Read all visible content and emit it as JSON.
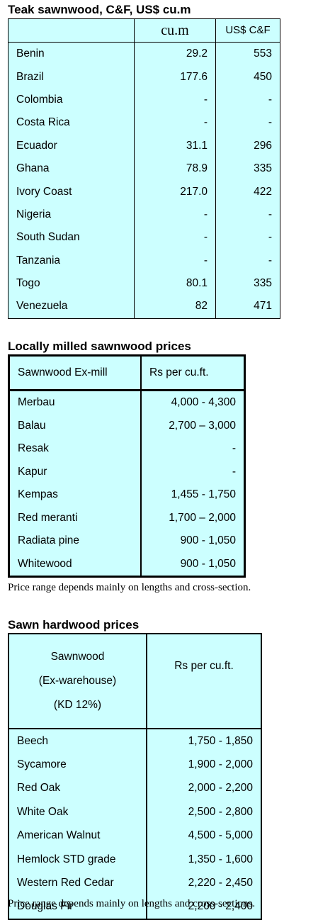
{
  "teak": {
    "title": "Teak sawnwood, C&F, US$ cu.m",
    "headers": [
      "",
      "cu.m",
      "US$ C&F"
    ],
    "rows": [
      [
        "Benin",
        "29.2",
        "553"
      ],
      [
        "Brazil",
        "177.6",
        "450"
      ],
      [
        "Colombia",
        "-",
        "-"
      ],
      [
        "Costa Rica",
        "-",
        "-"
      ],
      [
        "Ecuador",
        "31.1",
        "296"
      ],
      [
        "Ghana",
        "78.9",
        "335"
      ],
      [
        "Ivory Coast",
        "217.0",
        "422"
      ],
      [
        "Nigeria",
        "-",
        "-"
      ],
      [
        "South Sudan",
        "-",
        "-"
      ],
      [
        "Tanzania",
        "-",
        "-"
      ],
      [
        "Togo",
        "80.1",
        "335"
      ],
      [
        "Venezuela",
        "82",
        "471"
      ]
    ]
  },
  "local": {
    "title": "Locally milled sawnwood prices",
    "headers": [
      "Sawnwood Ex-mill",
      "Rs per cu.ft."
    ],
    "rows": [
      [
        "Merbau",
        "4,000 - 4,300"
      ],
      [
        "Balau",
        "2,700 – 3,000"
      ],
      [
        "Resak",
        "-"
      ],
      [
        "Kapur",
        "-"
      ],
      [
        "Kempas",
        "1,455 - 1,750"
      ],
      [
        "Red meranti",
        "1,700 – 2,000"
      ],
      [
        "Radiata pine",
        "900 - 1,050"
      ],
      [
        "Whitewood",
        "900 - 1,050"
      ]
    ],
    "note": "Price range depends mainly on lengths and cross-section."
  },
  "hardwood": {
    "title": "Sawn hardwood prices",
    "header_lines": [
      "Sawnwood",
      "(Ex-warehouse)",
      "(KD 12%)"
    ],
    "header_right": "Rs per cu.ft.",
    "rows": [
      [
        "Beech",
        "1,750 - 1,850"
      ],
      [
        "Sycamore",
        "1,900 - 2,000"
      ],
      [
        "Red Oak",
        "2,000 - 2,200"
      ],
      [
        "White Oak",
        "2,500 - 2,800"
      ],
      [
        "American Walnut",
        "4,500 - 5,000"
      ],
      [
        "Hemlock STD grade",
        "1,350 - 1,600"
      ],
      [
        "Western Red Cedar",
        "2,220 - 2,450"
      ],
      [
        "Douglas Fir",
        "2,200 - 2,400"
      ]
    ],
    "note": "Price range depends mainly on lengths and cross-sections."
  }
}
